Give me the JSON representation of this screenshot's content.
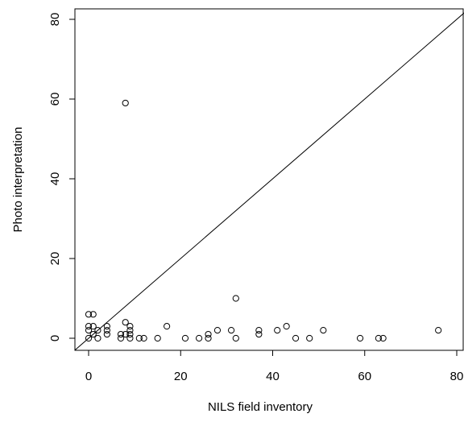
{
  "chart_data": {
    "type": "scatter",
    "title": "",
    "xlabel": "NILS field inventory",
    "ylabel": "Photo interpretation",
    "xlim": [
      -3,
      82
    ],
    "ylim": [
      -3,
      83
    ],
    "xticks": [
      0,
      20,
      40,
      60,
      80
    ],
    "yticks": [
      0,
      20,
      40,
      60,
      80
    ],
    "x_tick_labels": [
      "0",
      "20",
      "40",
      "60",
      "80"
    ],
    "y_tick_labels": [
      "0",
      "20",
      "40",
      "60",
      "80"
    ],
    "marker": "open-circle",
    "reference_line": {
      "type": "identity",
      "from": [
        -3,
        -3
      ],
      "to": [
        82,
        82
      ]
    },
    "grid": false,
    "points": [
      [
        0,
        6
      ],
      [
        1,
        6
      ],
      [
        0,
        3
      ],
      [
        1,
        3
      ],
      [
        2,
        2
      ],
      [
        0,
        2
      ],
      [
        1,
        1
      ],
      [
        0,
        0
      ],
      [
        2,
        0
      ],
      [
        4,
        3
      ],
      [
        4,
        2
      ],
      [
        4,
        1
      ],
      [
        8,
        59
      ],
      [
        7,
        1
      ],
      [
        7,
        0
      ],
      [
        8,
        4
      ],
      [
        8,
        1
      ],
      [
        9,
        3
      ],
      [
        9,
        2
      ],
      [
        9,
        1
      ],
      [
        9,
        0
      ],
      [
        11,
        0
      ],
      [
        12,
        0
      ],
      [
        15,
        0
      ],
      [
        17,
        3
      ],
      [
        21,
        0
      ],
      [
        24,
        0
      ],
      [
        26,
        1
      ],
      [
        26,
        0
      ],
      [
        28,
        2
      ],
      [
        31,
        2
      ],
      [
        32,
        10
      ],
      [
        32,
        0
      ],
      [
        37,
        2
      ],
      [
        37,
        1
      ],
      [
        41,
        2
      ],
      [
        43,
        3
      ],
      [
        45,
        0
      ],
      [
        48,
        0
      ],
      [
        51,
        2
      ],
      [
        59,
        0
      ],
      [
        63,
        0
      ],
      [
        64,
        0
      ],
      [
        76,
        2
      ]
    ]
  }
}
